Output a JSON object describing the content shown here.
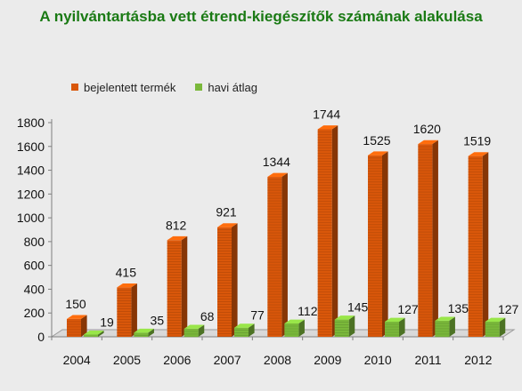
{
  "chart_data": {
    "type": "bar",
    "title": "A nyilvántartásba vett étrend-kiegészítők számának alakulása",
    "categories": [
      "2004",
      "2005",
      "2006",
      "2007",
      "2008",
      "2009",
      "2010",
      "2011",
      "2012"
    ],
    "series": [
      {
        "name": "bejelentett termék",
        "values": [
          150,
          415,
          812,
          921,
          1344,
          1744,
          1525,
          1620,
          1519
        ],
        "color": "#d9570a"
      },
      {
        "name": "havi átlag",
        "values": [
          19,
          35,
          68,
          77,
          112,
          145,
          127,
          135,
          127
        ],
        "color": "#7ab83a"
      }
    ],
    "y_ticks": [
      "0",
      "200",
      "400",
      "600",
      "800",
      "1000",
      "1200",
      "1400",
      "1600",
      "1800"
    ],
    "ylim": [
      0,
      1800
    ],
    "legend_position": "top-left",
    "grid": false,
    "style": "3d-column"
  }
}
